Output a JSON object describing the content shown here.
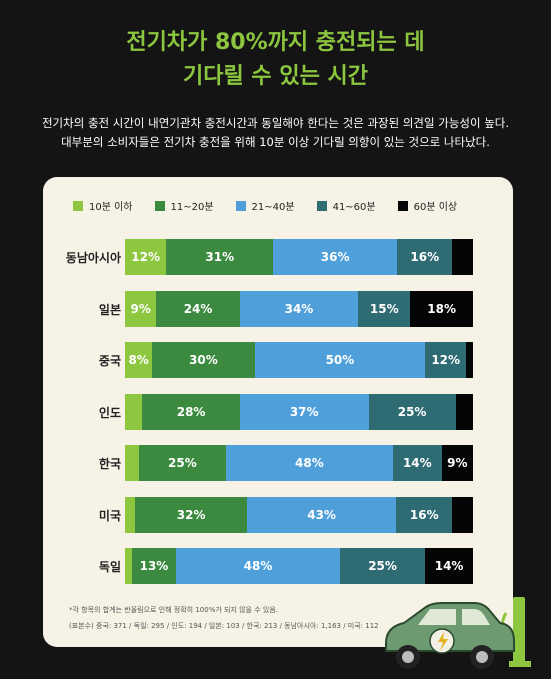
{
  "title_line1": "전기차가 80%까지 충전되는 데",
  "title_line2": "기다릴 수 있는 시간",
  "desc_line1": "전기차의 충전 시간이 내연기관차 충전시간과 동일해야 한다는 것은 과장된 의견일 가능성이 높다.",
  "desc_line2": "대부분의 소비자들은 전기차 충전을 위해 10분 이상 기다릴 의향이 있는 것으로 나타났다.",
  "footnote_line1": "*각 항목의 합계는 반올림으로 인해 정확히 100%가 되지 않을 수 있음.",
  "footnote_line2": "(표본수) 중국: 371 / 독일: 295 / 인도: 194 / 일본: 103 / 한국: 213 / 동남아시아: 1,163 / 미국: 112",
  "colors": {
    "title": "#8cc63f",
    "background": "#141414",
    "card": "#f6f3e6"
  },
  "icon": "electric-car-charging-icon",
  "chart_data": {
    "type": "bar",
    "orientation": "horizontal-stacked-100",
    "categories": [
      "동남아시아",
      "일본",
      "중국",
      "인도",
      "한국",
      "미국",
      "독일"
    ],
    "legend_placement": "top",
    "series": [
      {
        "name": "10분 이하",
        "color": "#8dc63f",
        "values": [
          12,
          9,
          8,
          5,
          4,
          3,
          2
        ],
        "labels": [
          "12%",
          "9%",
          "8%",
          "",
          "",
          "",
          ""
        ]
      },
      {
        "name": "11~20분",
        "color": "#3b8a3f",
        "values": [
          31,
          24,
          30,
          28,
          25,
          32,
          13
        ],
        "labels": [
          "31%",
          "24%",
          "30%",
          "28%",
          "25%",
          "32%",
          "13%"
        ]
      },
      {
        "name": "21~40분",
        "color": "#4e9fda",
        "values": [
          36,
          34,
          50,
          37,
          48,
          43,
          48
        ],
        "labels": [
          "36%",
          "34%",
          "50%",
          "37%",
          "48%",
          "43%",
          "48%"
        ]
      },
      {
        "name": "41~60분",
        "color": "#2f6b73",
        "values": [
          16,
          15,
          12,
          25,
          14,
          16,
          25
        ],
        "labels": [
          "16%",
          "15%",
          "12%",
          "25%",
          "14%",
          "16%",
          "25%"
        ]
      },
      {
        "name": "60분 이상",
        "color": "#050505",
        "values": [
          6,
          18,
          2,
          5,
          9,
          6,
          14
        ],
        "labels": [
          "",
          "18%",
          "",
          "",
          "9%",
          "",
          "14%"
        ]
      }
    ]
  }
}
